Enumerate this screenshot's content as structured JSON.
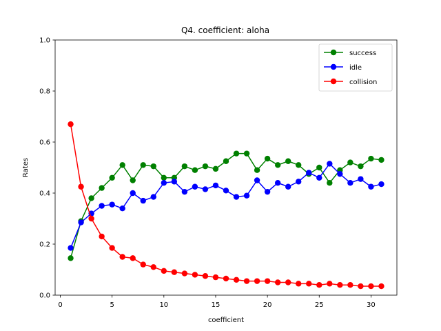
{
  "chart_data": {
    "type": "line",
    "title": "Q4. coefficient: aloha",
    "xlabel": "coefficient",
    "ylabel": "Rates",
    "xlim": [
      -0.5,
      32.5
    ],
    "ylim": [
      0.0,
      1.0
    ],
    "xticks": [
      0,
      5,
      10,
      15,
      20,
      25,
      30
    ],
    "xtick_labels": [
      "0",
      "5",
      "10",
      "15",
      "20",
      "25",
      "30"
    ],
    "yticks": [
      0.0,
      0.2,
      0.4,
      0.6,
      0.8,
      1.0
    ],
    "ytick_labels": [
      "0.0",
      "0.2",
      "0.4",
      "0.6",
      "0.8",
      "1.0"
    ],
    "grid": false,
    "legend_position": "top-right",
    "x": [
      1,
      2,
      3,
      4,
      5,
      6,
      7,
      8,
      9,
      10,
      11,
      12,
      13,
      14,
      15,
      16,
      17,
      18,
      19,
      20,
      21,
      22,
      23,
      24,
      25,
      26,
      27,
      28,
      29,
      30,
      31
    ],
    "series": [
      {
        "name": "success",
        "color": "#008000",
        "values": [
          0.145,
          0.29,
          0.38,
          0.42,
          0.46,
          0.51,
          0.45,
          0.51,
          0.505,
          0.46,
          0.46,
          0.505,
          0.49,
          0.505,
          0.495,
          0.525,
          0.555,
          0.555,
          0.49,
          0.535,
          0.51,
          0.525,
          0.51,
          0.475,
          0.5,
          0.44,
          0.49,
          0.52,
          0.505,
          0.535,
          0.53
        ]
      },
      {
        "name": "idle",
        "color": "#0000ff",
        "values": [
          0.185,
          0.285,
          0.32,
          0.35,
          0.355,
          0.34,
          0.4,
          0.37,
          0.385,
          0.44,
          0.445,
          0.405,
          0.425,
          0.415,
          0.43,
          0.41,
          0.385,
          0.39,
          0.45,
          0.405,
          0.44,
          0.425,
          0.445,
          0.48,
          0.46,
          0.515,
          0.475,
          0.44,
          0.455,
          0.425,
          0.435
        ]
      },
      {
        "name": "collision",
        "color": "#ff0000",
        "values": [
          0.67,
          0.425,
          0.3,
          0.23,
          0.185,
          0.15,
          0.145,
          0.12,
          0.11,
          0.095,
          0.09,
          0.085,
          0.08,
          0.075,
          0.07,
          0.065,
          0.06,
          0.055,
          0.055,
          0.055,
          0.05,
          0.05,
          0.045,
          0.045,
          0.04,
          0.045,
          0.04,
          0.04,
          0.035,
          0.035,
          0.035
        ]
      }
    ]
  }
}
